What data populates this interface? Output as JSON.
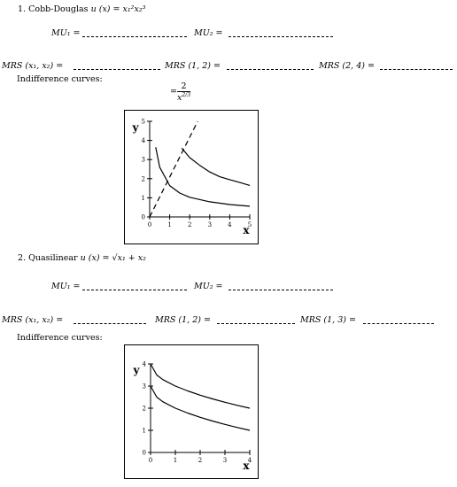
{
  "problem1": {
    "heading": "1. Cobb-Douglas",
    "utility": "u (x) = x₁²x₂³",
    "mu1_label": "MU₁ =",
    "mu2_label": "MU₂ =",
    "mrs_label": "MRS (x₁, x₂) =",
    "mrs_a_label": "MRS (1, 2) =",
    "mrs_b_label": "MRS (2, 4) =",
    "indiff_label": "Indifference curves:",
    "equation_num": "2",
    "equation_den": "x",
    "equation_exp": "2/3",
    "chart_data": {
      "type": "line",
      "xlim": [
        0,
        5
      ],
      "ylim": [
        0,
        5
      ],
      "xlabel": "x",
      "ylabel": "y",
      "x_ticks": [
        "0",
        "1",
        "2",
        "3",
        "4",
        "5"
      ],
      "y_ticks": [
        "0",
        "1",
        "2",
        "3",
        "4",
        "5"
      ],
      "series": [
        {
          "style": "solid",
          "formula": "y = 1.64 / x^(2/3)",
          "x": [
            0.3,
            0.5,
            1,
            1.5,
            2,
            3,
            4,
            5
          ],
          "y": [
            3.65,
            2.6,
            1.64,
            1.25,
            1.03,
            0.79,
            0.65,
            0.56
          ]
        },
        {
          "style": "solid",
          "formula": "y = 4.9 / x^(2/3)",
          "x": [
            1.6,
            2,
            2.5,
            3,
            3.5,
            4,
            4.5,
            5
          ],
          "y": [
            3.6,
            3.1,
            2.7,
            2.35,
            2.1,
            1.95,
            1.8,
            1.65
          ]
        },
        {
          "style": "dashed",
          "x": [
            0,
            2.4
          ],
          "y": [
            0,
            5
          ]
        }
      ]
    }
  },
  "problem2": {
    "heading": "2. Quasilinear",
    "utility": "u (x) = √x₁ + x₂",
    "mu1_label": "MU₁ =",
    "mu2_label": "MU₂ =",
    "mrs_label": "MRS (x₁, x₂) =",
    "mrs_a_label": "MRS (1, 2) =",
    "mrs_b_label": "MRS (1, 3) =",
    "indiff_label": "Indifference curves:",
    "chart_data": {
      "type": "line",
      "xlim": [
        0,
        4
      ],
      "ylim": [
        0,
        4
      ],
      "xlabel": "x",
      "ylabel": "y",
      "x_ticks": [
        "0",
        "1",
        "2",
        "3",
        "4"
      ],
      "y_ticks": [
        "0",
        "1",
        "2",
        "3",
        "4"
      ],
      "series": [
        {
          "style": "solid",
          "formula": "y = 4 - sqrt(x)",
          "x": [
            0,
            0.25,
            0.5,
            1,
            1.5,
            2,
            2.5,
            3,
            3.5,
            4
          ],
          "y": [
            4,
            3.5,
            3.29,
            3,
            2.78,
            2.59,
            2.42,
            2.27,
            2.13,
            2
          ]
        },
        {
          "style": "solid",
          "formula": "y = 3 - sqrt(x)",
          "x": [
            0,
            0.25,
            0.5,
            1,
            1.5,
            2,
            2.5,
            3,
            3.5,
            4
          ],
          "y": [
            3,
            2.5,
            2.29,
            2,
            1.78,
            1.59,
            1.42,
            1.27,
            1.13,
            1
          ]
        }
      ]
    }
  }
}
